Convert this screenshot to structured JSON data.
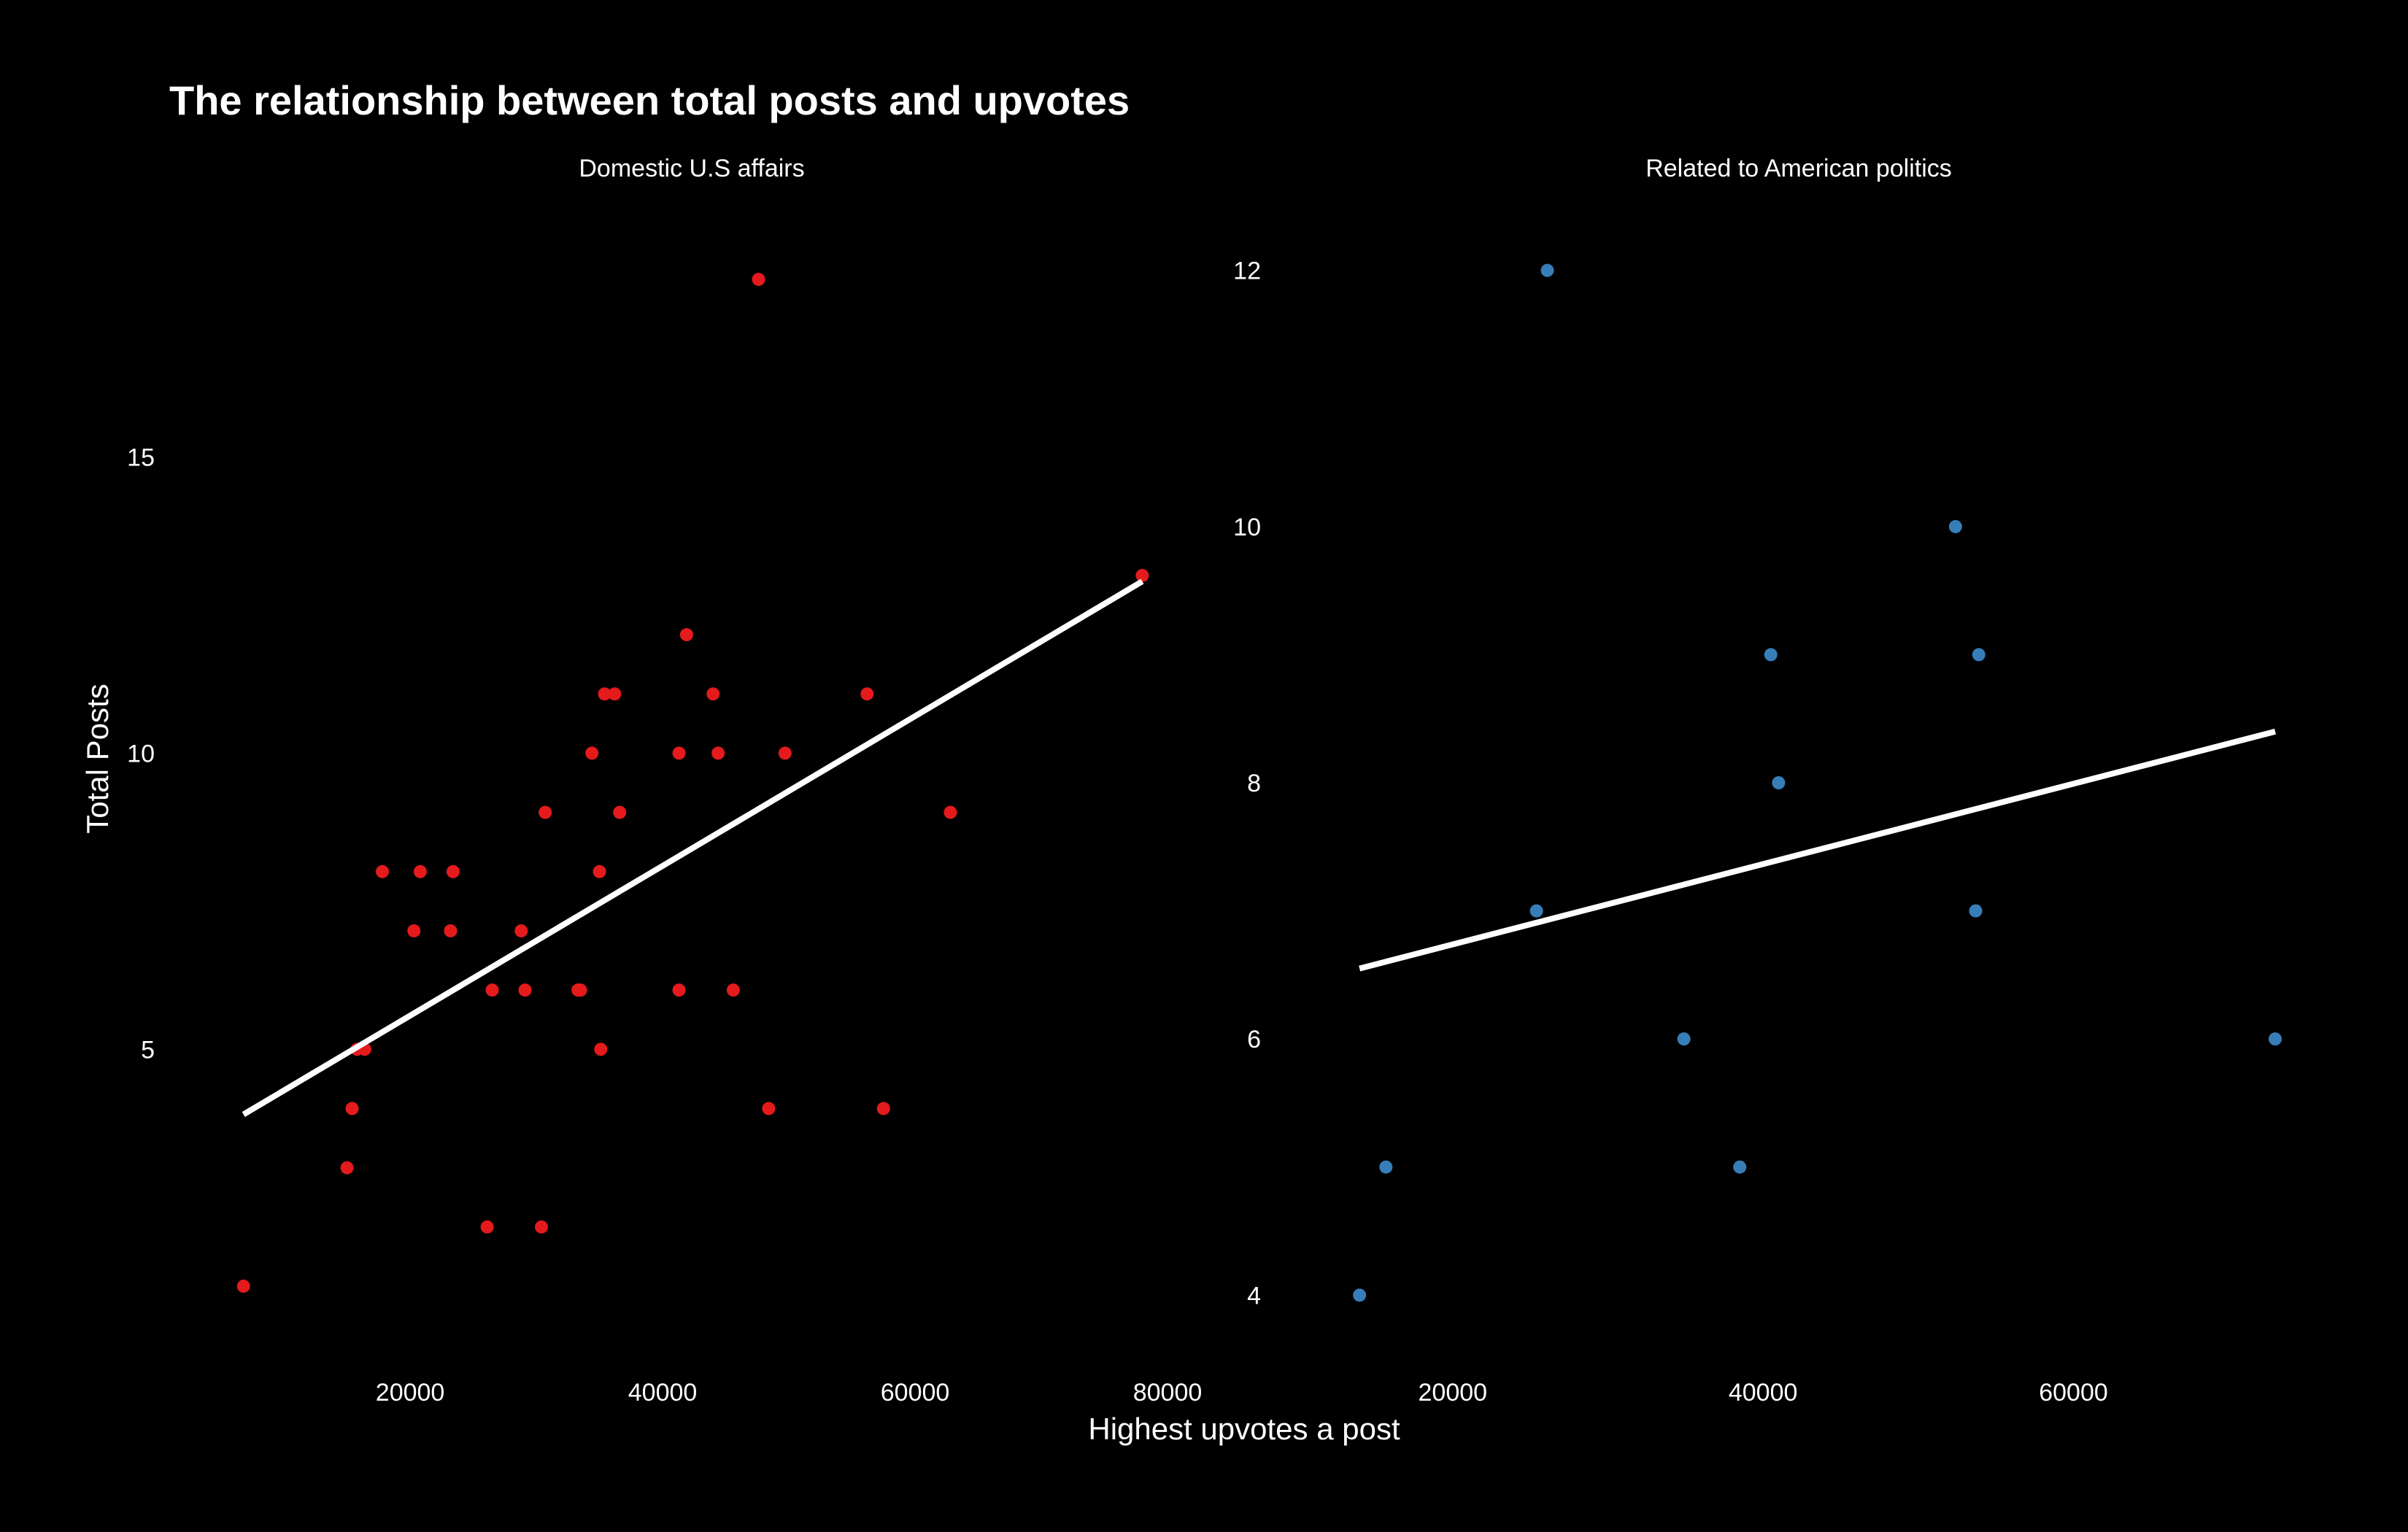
{
  "title": "The relationship between total posts and upvotes",
  "xlabel": "Highest upvotes a post",
  "ylabel": "Total Posts",
  "colors": {
    "background": "#000000",
    "text": "#ffffff",
    "trend_line": "#ffffff"
  },
  "chart_data": [
    {
      "type": "scatter",
      "facet_label": "Domestic U.S affairs",
      "color": "#e41a1c",
      "xlim": [
        3000,
        80000
      ],
      "ylim": [
        0.2,
        18.8
      ],
      "x_ticks": [
        20000,
        40000,
        60000,
        80000
      ],
      "y_ticks": [
        5,
        10,
        15
      ],
      "trend_line": {
        "x": [
          6800,
          78000
        ],
        "y": [
          3.9,
          12.9
        ]
      },
      "points": [
        {
          "x": 6800,
          "y": 1
        },
        {
          "x": 15000,
          "y": 3
        },
        {
          "x": 15400,
          "y": 4
        },
        {
          "x": 15800,
          "y": 5
        },
        {
          "x": 16400,
          "y": 5
        },
        {
          "x": 17800,
          "y": 8
        },
        {
          "x": 20300,
          "y": 7
        },
        {
          "x": 20800,
          "y": 8
        },
        {
          "x": 23200,
          "y": 7
        },
        {
          "x": 23400,
          "y": 8
        },
        {
          "x": 26100,
          "y": 2
        },
        {
          "x": 26500,
          "y": 6
        },
        {
          "x": 28800,
          "y": 7
        },
        {
          "x": 29100,
          "y": 6
        },
        {
          "x": 30400,
          "y": 2
        },
        {
          "x": 30700,
          "y": 9
        },
        {
          "x": 33300,
          "y": 6
        },
        {
          "x": 33500,
          "y": 6
        },
        {
          "x": 34400,
          "y": 10
        },
        {
          "x": 35000,
          "y": 8
        },
        {
          "x": 35100,
          "y": 5
        },
        {
          "x": 35400,
          "y": 11
        },
        {
          "x": 36200,
          "y": 11
        },
        {
          "x": 36600,
          "y": 9
        },
        {
          "x": 41300,
          "y": 10
        },
        {
          "x": 41300,
          "y": 6
        },
        {
          "x": 41900,
          "y": 12
        },
        {
          "x": 44000,
          "y": 11
        },
        {
          "x": 44400,
          "y": 10
        },
        {
          "x": 45600,
          "y": 6
        },
        {
          "x": 47600,
          "y": 18
        },
        {
          "x": 48400,
          "y": 4
        },
        {
          "x": 49700,
          "y": 10
        },
        {
          "x": 56200,
          "y": 11
        },
        {
          "x": 57500,
          "y": 4
        },
        {
          "x": 62800,
          "y": 9
        },
        {
          "x": 78000,
          "y": 13
        }
      ]
    },
    {
      "type": "scatter",
      "facet_label": "Related to American politics",
      "color": "#377eb8",
      "xlim": [
        11500,
        73000
      ],
      "ylim": [
        3.7,
        12.3
      ],
      "x_ticks": [
        20000,
        40000,
        60000
      ],
      "y_ticks": [
        4,
        6,
        8,
        10,
        12
      ],
      "trend_line": {
        "x": [
          14000,
          73000
        ],
        "y": [
          6.55,
          8.4
        ]
      },
      "points": [
        {
          "x": 14000,
          "y": 4
        },
        {
          "x": 15700,
          "y": 5
        },
        {
          "x": 25400,
          "y": 7
        },
        {
          "x": 26100,
          "y": 12
        },
        {
          "x": 34900,
          "y": 6
        },
        {
          "x": 38500,
          "y": 5
        },
        {
          "x": 40500,
          "y": 9
        },
        {
          "x": 41000,
          "y": 8
        },
        {
          "x": 52400,
          "y": 10
        },
        {
          "x": 53700,
          "y": 7
        },
        {
          "x": 53900,
          "y": 9
        },
        {
          "x": 73000,
          "y": 6
        }
      ]
    }
  ]
}
